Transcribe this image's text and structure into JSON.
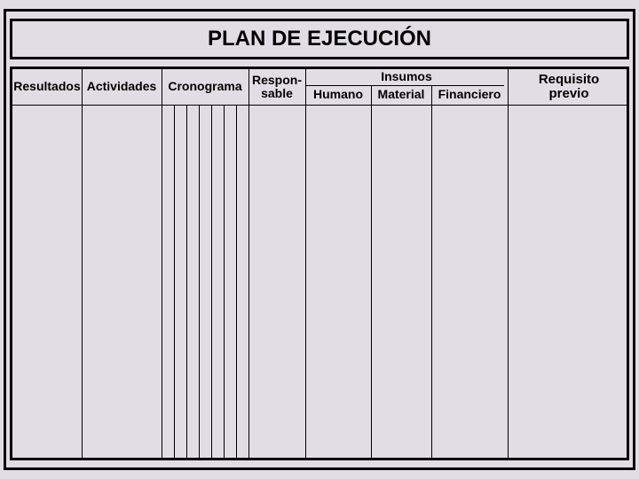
{
  "title": "PLAN DE EJECUCIÓN",
  "headers": {
    "resultados": "Resultados",
    "actividades": "Actividades",
    "cronograma": "Cronograma",
    "responsable_l1": "Respon-",
    "responsable_l2": "sable",
    "insumos": "Insumos",
    "humano": "Humano",
    "material": "Material",
    "financiero": "Financiero",
    "requisito_l1": "Requisito",
    "requisito_l2": "previo"
  },
  "style": {
    "background_color": "#e0dee4",
    "border_color": "#000000",
    "title_fontsize": 24,
    "header_fontsize": 14,
    "cronograma_subcolumns": 6
  }
}
